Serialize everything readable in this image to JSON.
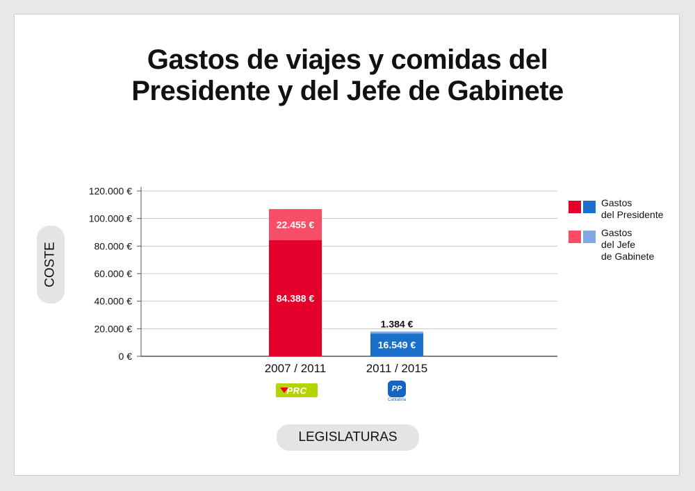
{
  "title": {
    "line1": "Gastos de viajes y comidas del",
    "line2": "Presidente y del Jefe de Gabinete"
  },
  "axis": {
    "ylabel": "COSTE",
    "xlabel": "LEGISLATURAS"
  },
  "legend": [
    {
      "label": "Gastos\ndel Presidente",
      "colors": [
        "#e4002b",
        "#1a6fc9"
      ]
    },
    {
      "label": "Gastos\ndel Jefe\nde Gabinete",
      "colors": [
        "#f74d66",
        "#7fa8e0"
      ]
    }
  ],
  "logos": {
    "prc": {
      "text": "PRC",
      "icon": "prc-logo"
    },
    "pp": {
      "text": "PP",
      "subtext": "Cantabria",
      "icon": "pp-logo"
    }
  },
  "chart_data": {
    "type": "bar",
    "stacked": true,
    "categories": [
      "2007 / 2011",
      "2011 / 2015"
    ],
    "series": [
      {
        "name": "Gastos del Presidente",
        "values": [
          84388,
          16549
        ],
        "labels": [
          "84.388 €",
          "16.549 €"
        ],
        "colors": [
          "#e4002b",
          "#1a6fc9"
        ]
      },
      {
        "name": "Gastos del Jefe de Gabinete",
        "values": [
          22455,
          1384
        ],
        "labels": [
          "22.455 €",
          "1.384 €"
        ],
        "colors": [
          "#f74d66",
          "#7fa8e0"
        ]
      }
    ],
    "yticks": [
      0,
      20000,
      40000,
      60000,
      80000,
      100000,
      120000
    ],
    "ytick_labels": [
      "0 €",
      "20.000 €",
      "40.000 €",
      "60.000 €",
      "80.000 €",
      "100.000 €",
      "120.000 €"
    ],
    "ylim": [
      0,
      120000
    ],
    "grid": true
  }
}
